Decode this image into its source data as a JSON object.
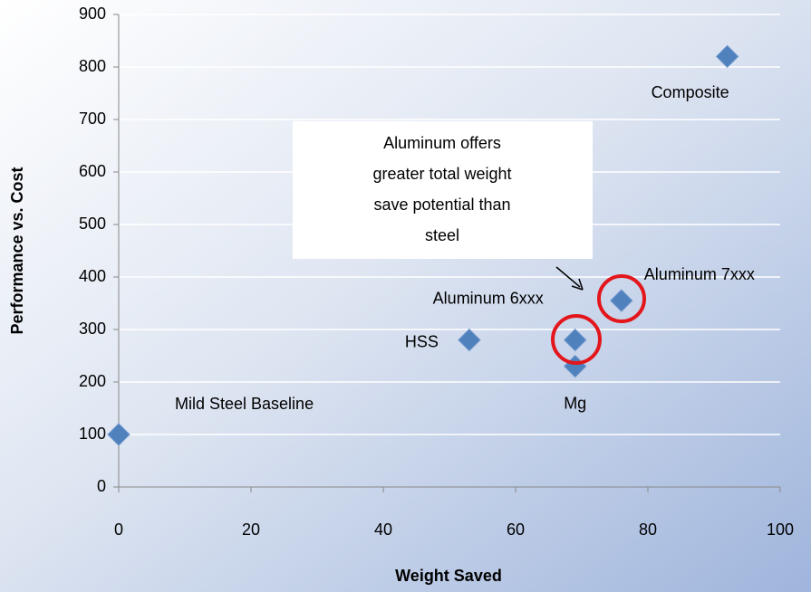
{
  "chart_data": {
    "type": "scatter",
    "x_label": "Weight Saved",
    "y_label": "Performance vs. Cost",
    "x": [
      0,
      53,
      69,
      69,
      76,
      92
    ],
    "values": [
      100,
      280,
      280,
      230,
      355,
      820
    ],
    "point_labels": [
      "Mild Steel Baseline",
      "HSS",
      "Aluminum 6xxx",
      "Mg",
      "Aluminum 7xxx",
      "Composite"
    ],
    "color": "#4f81bd",
    "xlim": [
      0,
      100
    ],
    "xticks": [
      0,
      20,
      40,
      60,
      80,
      100
    ],
    "ylim": [
      0,
      900
    ],
    "yticks": [
      0,
      100,
      200,
      300,
      400,
      500,
      600,
      700,
      800,
      900
    ],
    "grid": true,
    "annotation": [
      "Aluminum offers",
      "greater total weight",
      "save potential than",
      "steel"
    ]
  }
}
